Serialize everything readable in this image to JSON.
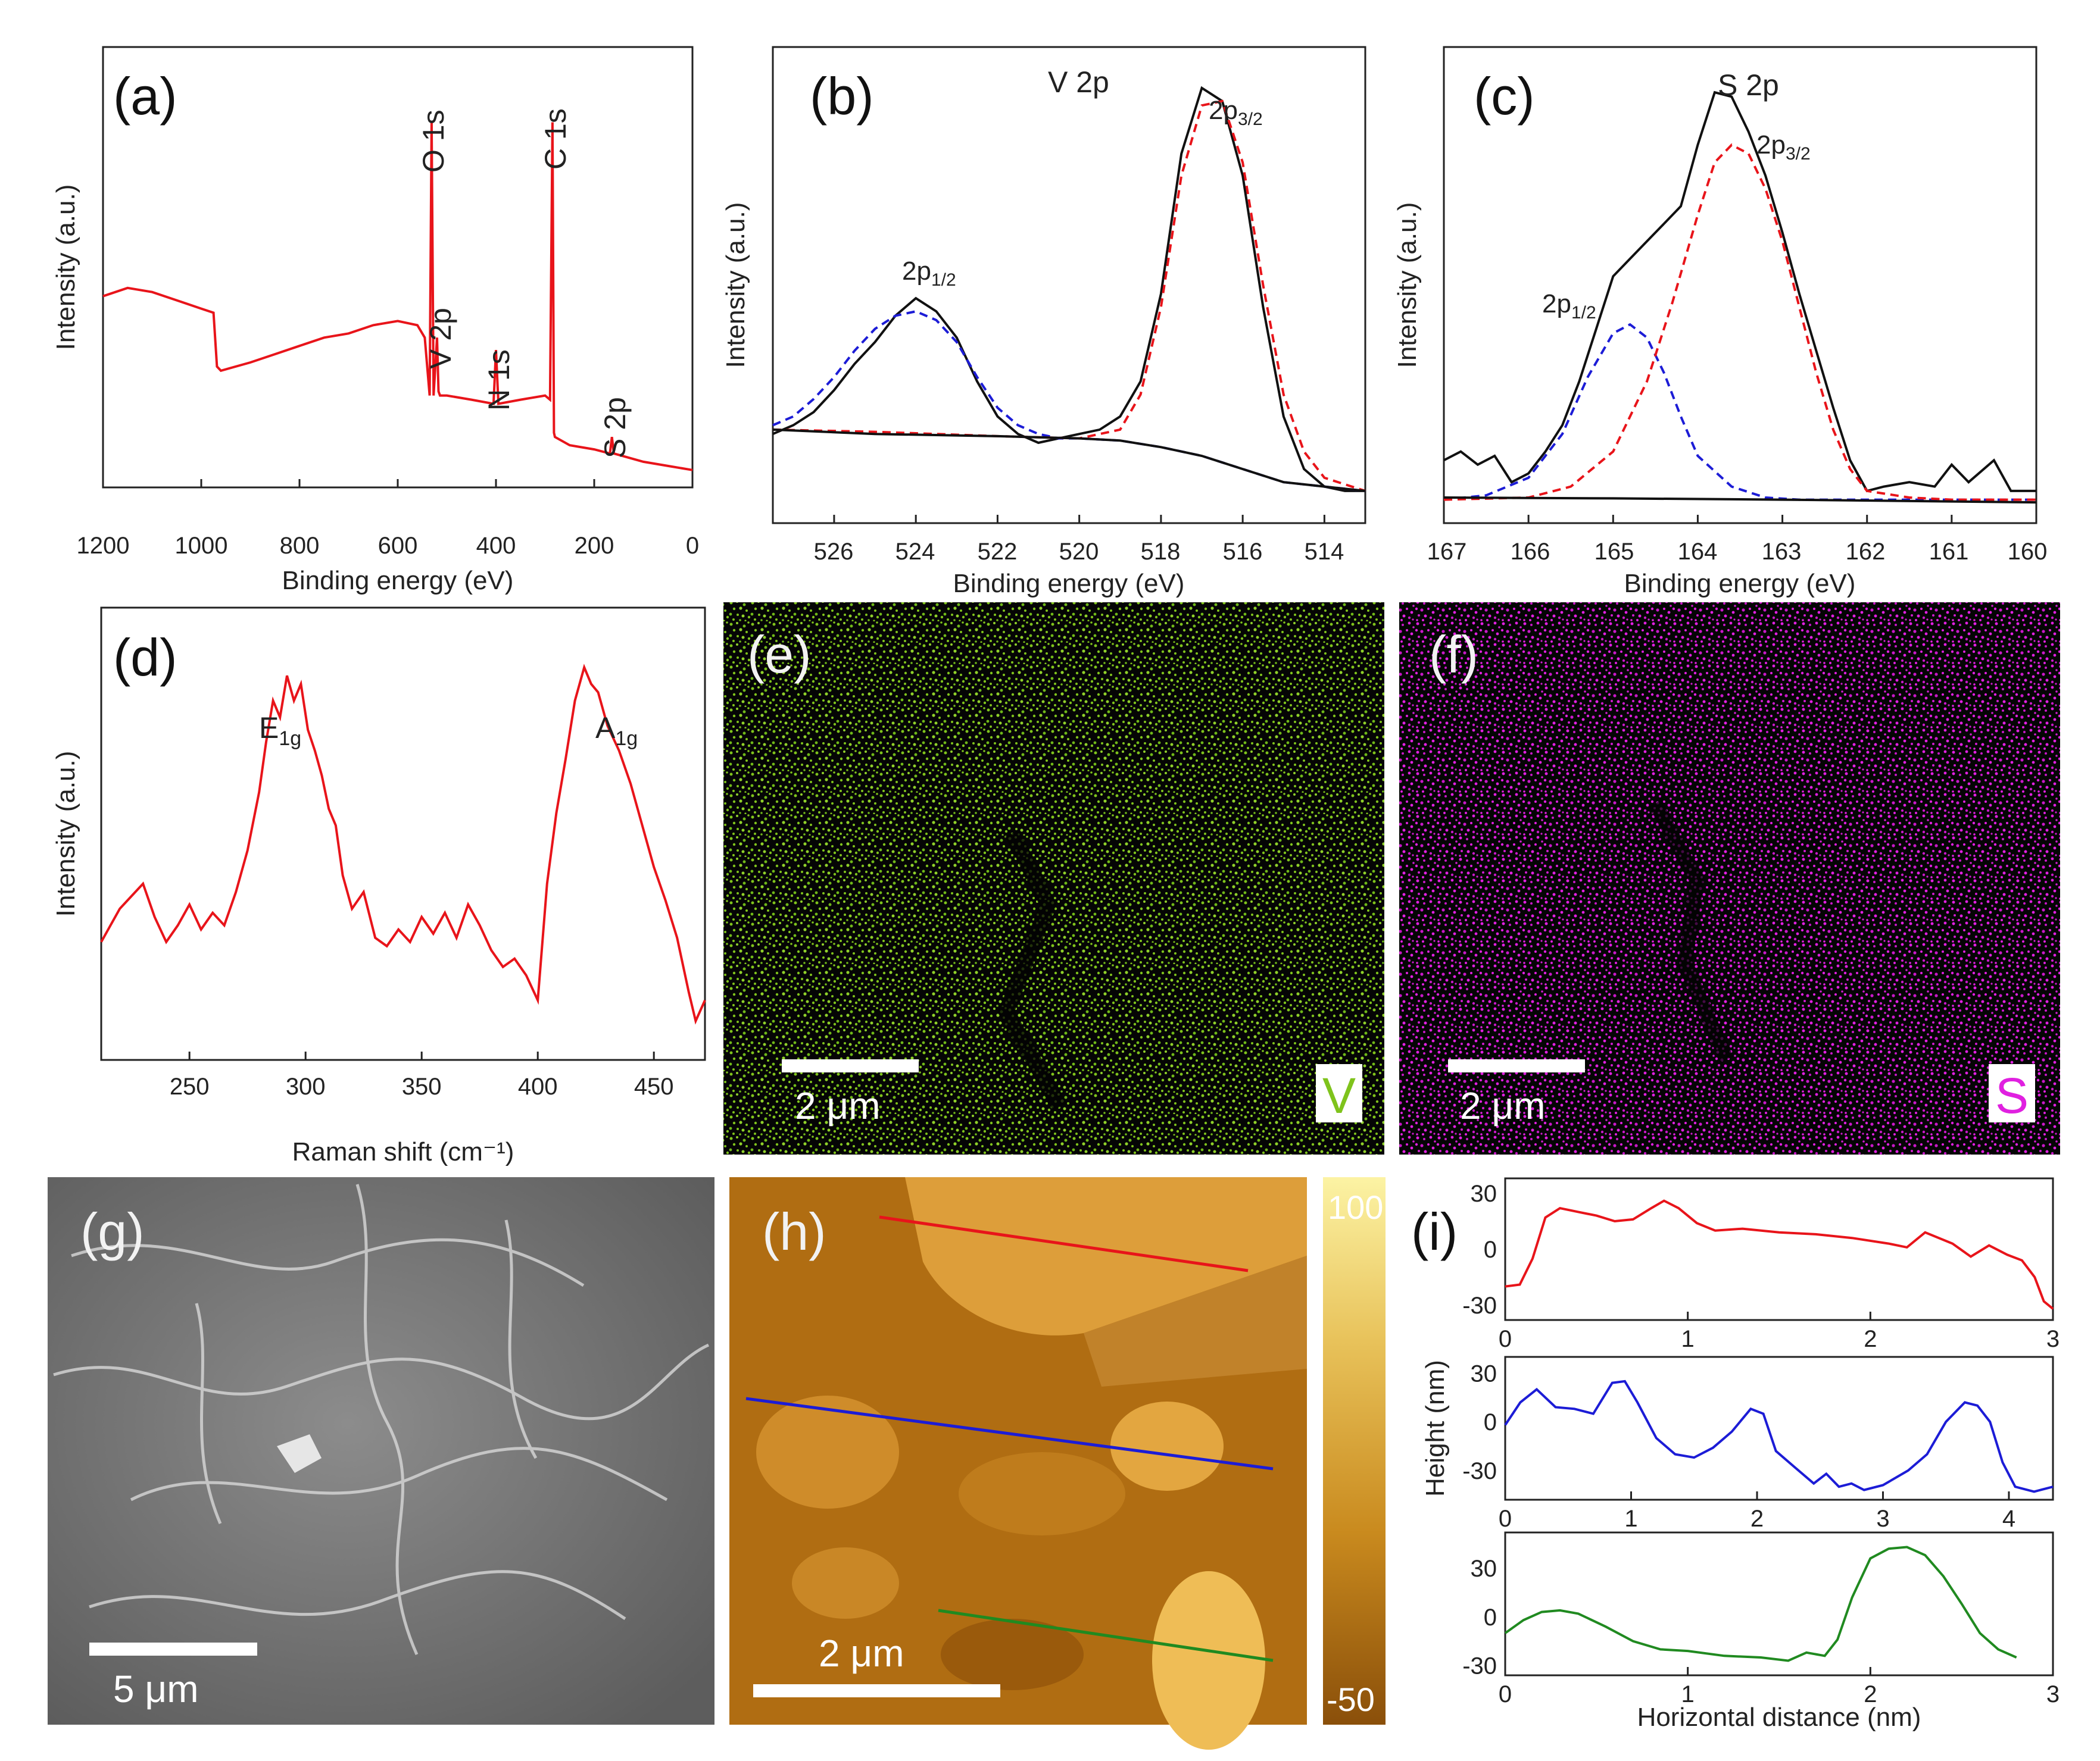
{
  "figure": {
    "panels": {
      "a": "(a)",
      "b": "(b)",
      "c": "(c)",
      "d": "(d)",
      "e": "(e)",
      "f": "(f)",
      "g": "(g)",
      "h": "(h)",
      "i": "(i)"
    },
    "map_e": {
      "element": "V",
      "scale_label": "2 μm",
      "color": "#7fc31c"
    },
    "map_f": {
      "element": "S",
      "scale_label": "2 μm",
      "color": "#e020e0"
    },
    "sem_g": {
      "scale_label": "5 μm"
    },
    "afm_h": {
      "scale_label": "2 μm",
      "colorbar_max": "100",
      "colorbar_min": "-50"
    }
  },
  "chart_data": [
    {
      "id": "a",
      "type": "line",
      "title": "",
      "xlabel": "Binding energy (eV)",
      "ylabel": "Intensity (a.u.)",
      "xlim": [
        1200,
        0
      ],
      "ylim": [
        0,
        100
      ],
      "xticks": [
        "1200",
        "1000",
        "800",
        "600",
        "400",
        "200",
        "0"
      ],
      "annotations": [
        {
          "text": "O 1s",
          "x": 531
        },
        {
          "text": "V 2p",
          "x": 517
        },
        {
          "text": "N 1s",
          "x": 400
        },
        {
          "text": "C 1s",
          "x": 285
        },
        {
          "text": "S 2p",
          "x": 164
        }
      ],
      "series": [
        {
          "name": "survey",
          "color": "#e8141a",
          "x": [
            1200,
            1150,
            1100,
            1050,
            1000,
            975,
            968,
            960,
            900,
            850,
            800,
            750,
            700,
            650,
            600,
            560,
            545,
            535,
            531,
            527,
            520,
            517,
            514,
            500,
            450,
            405,
            400,
            395,
            350,
            300,
            290,
            285,
            282,
            280,
            250,
            200,
            168,
            164,
            160,
            100,
            50,
            0
          ],
          "y": [
            43,
            45,
            44,
            42,
            40,
            39,
            26,
            25,
            27,
            29,
            31,
            33,
            34,
            36,
            37,
            36,
            33,
            19,
            85,
            19,
            33,
            20,
            19,
            19,
            18,
            17,
            30,
            17,
            18,
            19,
            18,
            85,
            10,
            9,
            7,
            6,
            5,
            9,
            5,
            3,
            2,
            1
          ]
        }
      ]
    },
    {
      "id": "b",
      "type": "line",
      "title": "V 2p",
      "xlabel": "Binding energy (eV)",
      "ylabel": "Intensity (a.u.)",
      "xlim": [
        527.5,
        513
      ],
      "ylim": [
        0,
        100
      ],
      "xticks": [
        "526",
        "524",
        "522",
        "520",
        "518",
        "516",
        "514"
      ],
      "annotations": [
        {
          "text": "2p1/2",
          "x": 523.8,
          "color": "#1c1cd6"
        },
        {
          "text": "2p3/2",
          "x": 515.6,
          "color": "#e8141a"
        }
      ],
      "series": [
        {
          "name": "experimental",
          "color": "#111111",
          "x": [
            527.5,
            527,
            526.5,
            526,
            525.5,
            525,
            524.5,
            524,
            523.5,
            523,
            522.5,
            522,
            521.5,
            521,
            520.5,
            520,
            519.5,
            519,
            518.5,
            518,
            517.5,
            517,
            516.5,
            516,
            515.5,
            515,
            514.5,
            514,
            513.5,
            513
          ],
          "y": [
            16,
            18,
            21,
            26,
            32,
            37,
            43,
            47,
            44,
            38,
            28,
            20,
            16,
            14,
            15,
            16,
            17,
            20,
            28,
            48,
            80,
            95,
            92,
            75,
            45,
            20,
            8,
            4,
            3,
            3
          ]
        },
        {
          "name": "2p1/2 fit",
          "color": "#1c1cd6",
          "dashed": true,
          "x": [
            527.5,
            527,
            526.5,
            526,
            525.5,
            525,
            524.5,
            524,
            523.5,
            523,
            522.5,
            522,
            521.5,
            521,
            520.5,
            520,
            519,
            518,
            517,
            516,
            515,
            514,
            513
          ],
          "y": [
            18,
            20,
            24,
            29,
            35,
            40,
            43,
            44,
            42,
            37,
            29,
            22,
            18,
            16,
            15,
            15,
            14.5,
            13,
            11,
            8,
            5,
            4,
            3
          ]
        },
        {
          "name": "2p3/2 fit",
          "color": "#e8141a",
          "dashed": true,
          "x": [
            527.5,
            525,
            522,
            520,
            519,
            518.5,
            518,
            517.5,
            517,
            516.5,
            516,
            515.5,
            515,
            514.5,
            514,
            513
          ],
          "y": [
            17,
            16.5,
            15.5,
            15,
            17,
            25,
            45,
            75,
            91,
            92,
            78,
            50,
            25,
            12,
            6,
            3
          ]
        },
        {
          "name": "background",
          "color": "#111111",
          "x": [
            527.5,
            525,
            522,
            520,
            519,
            518,
            517,
            516,
            515,
            514,
            513
          ],
          "y": [
            17,
            16,
            15.5,
            15,
            14.5,
            13,
            11,
            8,
            5,
            4,
            3
          ]
        }
      ]
    },
    {
      "id": "c",
      "type": "line",
      "title": "S 2p",
      "xlabel": "Binding energy (eV)",
      "ylabel": "Intensity (a.u.)",
      "xlim": [
        167,
        160
      ],
      "ylim": [
        0,
        100
      ],
      "xticks": [
        "167",
        "166",
        "165",
        "164",
        "163",
        "162",
        "161",
        "160"
      ],
      "annotations": [
        {
          "text": "2p1/2",
          "x": 165.3,
          "color": "#1c1cd6"
        },
        {
          "text": "2p3/2",
          "x": 162.9,
          "color": "#e8141a"
        }
      ],
      "series": [
        {
          "name": "experimental",
          "color": "#111111",
          "x": [
            167,
            166.8,
            166.6,
            166.4,
            166.2,
            166.0,
            165.8,
            165.6,
            165.4,
            165.2,
            165.0,
            164.8,
            164.6,
            164.4,
            164.2,
            164.0,
            163.8,
            163.6,
            163.4,
            163.2,
            163.0,
            162.8,
            162.6,
            162.4,
            162.2,
            162.0,
            161.8,
            161.5,
            161.2,
            161.0,
            160.8,
            160.5,
            160.3,
            160.0
          ],
          "y": [
            10,
            12,
            9,
            11,
            5,
            7,
            12,
            18,
            28,
            40,
            52,
            56,
            60,
            64,
            68,
            82,
            94,
            93,
            85,
            75,
            62,
            48,
            35,
            22,
            10,
            3,
            4,
            5,
            4,
            9,
            5,
            10,
            3,
            3
          ]
        },
        {
          "name": "2p1/2 fit",
          "color": "#1c1cd6",
          "dashed": true,
          "x": [
            167,
            166.5,
            166,
            165.6,
            165.3,
            165.0,
            164.8,
            164.6,
            164.4,
            164.2,
            164.0,
            163.6,
            163.2,
            162.8,
            162.4,
            162,
            161,
            160
          ],
          "y": [
            1,
            2,
            6,
            16,
            29,
            39,
            41,
            38,
            30,
            20,
            11,
            4,
            1.5,
            1,
            1,
            1,
            1,
            1
          ]
        },
        {
          "name": "2p3/2 fit",
          "color": "#e8141a",
          "dashed": true,
          "x": [
            167,
            166,
            165.5,
            165.0,
            164.6,
            164.3,
            164.0,
            163.8,
            163.6,
            163.4,
            163.2,
            163.0,
            162.8,
            162.6,
            162.4,
            162.2,
            162.0,
            161.5,
            161,
            160
          ],
          "y": [
            1,
            1.5,
            4,
            12,
            28,
            46,
            66,
            78,
            82,
            80,
            72,
            60,
            45,
            30,
            17,
            8,
            3,
            1.5,
            1,
            1
          ]
        },
        {
          "name": "background",
          "color": "#111111",
          "x": [
            167,
            165,
            163,
            161,
            160
          ],
          "y": [
            1.5,
            1.3,
            1.0,
            0.6,
            0.4
          ]
        }
      ]
    },
    {
      "id": "d",
      "type": "line",
      "title": "",
      "xlabel": "Raman shift (cm⁻¹)",
      "ylabel": "Intensity (a.u.)",
      "xlim": [
        212,
        472
      ],
      "ylim": [
        0,
        100
      ],
      "xticks": [
        "250",
        "300",
        "350",
        "400",
        "450"
      ],
      "xtick_values": [
        250,
        300,
        350,
        400,
        450
      ],
      "annotations": [
        {
          "text": "E1g",
          "x": 290
        },
        {
          "text": "A1g",
          "x": 425
        }
      ],
      "series": [
        {
          "name": "Raman",
          "color": "#e8141a",
          "x": [
            212,
            216,
            220,
            225,
            230,
            235,
            240,
            245,
            250,
            255,
            260,
            265,
            270,
            275,
            280,
            283,
            286,
            289,
            292,
            295,
            298,
            301,
            304,
            307,
            310,
            313,
            316,
            320,
            325,
            330,
            335,
            340,
            345,
            350,
            355,
            360,
            365,
            370,
            375,
            380,
            385,
            390,
            395,
            400,
            404,
            408,
            412,
            416,
            420,
            423,
            426,
            430,
            435,
            440,
            445,
            450,
            455,
            460,
            465,
            468,
            472
          ],
          "y": [
            24,
            28,
            32,
            35,
            38,
            30,
            24,
            28,
            33,
            27,
            31,
            28,
            36,
            46,
            60,
            72,
            82,
            78,
            88,
            82,
            86,
            75,
            70,
            64,
            56,
            52,
            40,
            32,
            36,
            25,
            23,
            27,
            24,
            30,
            26,
            31,
            25,
            33,
            28,
            22,
            18,
            20,
            16,
            10,
            38,
            55,
            68,
            82,
            90,
            86,
            84,
            76,
            70,
            62,
            52,
            42,
            34,
            25,
            12,
            5,
            10
          ]
        }
      ]
    },
    {
      "id": "i1",
      "type": "line",
      "title": "",
      "xlabel": "",
      "ylabel": "",
      "xlim": [
        0,
        3
      ],
      "ylim": [
        -38,
        38
      ],
      "xticks": [
        "0",
        "1",
        "2",
        "3"
      ],
      "xtick_values": [
        0,
        1,
        2,
        3
      ],
      "yticks": [
        "30",
        "0",
        "-30"
      ],
      "ytick_values": [
        30,
        0,
        -30
      ],
      "series": [
        {
          "name": "red profile",
          "color": "#e8141a",
          "x": [
            0,
            0.08,
            0.15,
            0.22,
            0.3,
            0.4,
            0.5,
            0.6,
            0.7,
            0.8,
            0.87,
            0.95,
            1.05,
            1.15,
            1.3,
            1.5,
            1.7,
            1.9,
            2.1,
            2.2,
            2.3,
            2.45,
            2.55,
            2.65,
            2.75,
            2.83,
            2.9,
            2.95,
            3.0
          ],
          "y": [
            -20,
            -19,
            -5,
            17,
            22,
            20,
            18,
            15,
            16,
            22,
            26,
            22,
            14,
            10,
            11,
            9,
            8,
            6,
            3,
            1,
            9,
            3,
            -4,
            2,
            -3,
            -6,
            -15,
            -28,
            -32
          ]
        }
      ]
    },
    {
      "id": "i2",
      "type": "line",
      "title": "",
      "xlabel": "",
      "ylabel": "Height (nm)",
      "xlim": [
        0,
        4.35
      ],
      "ylim": [
        -48,
        40
      ],
      "xticks": [
        "0",
        "1",
        "2",
        "3",
        "4"
      ],
      "xtick_values": [
        0,
        1,
        2,
        3,
        4
      ],
      "yticks": [
        "30",
        "0",
        "-30"
      ],
      "ytick_values": [
        30,
        0,
        -30
      ],
      "series": [
        {
          "name": "blue profile",
          "color": "#1c1cd6",
          "x": [
            0,
            0.12,
            0.25,
            0.4,
            0.55,
            0.7,
            0.85,
            0.95,
            1.05,
            1.2,
            1.35,
            1.5,
            1.65,
            1.8,
            1.95,
            2.05,
            2.15,
            2.3,
            2.45,
            2.55,
            2.65,
            2.75,
            2.85,
            3.0,
            3.2,
            3.35,
            3.5,
            3.65,
            3.75,
            3.85,
            3.95,
            4.05,
            4.2,
            4.35
          ],
          "y": [
            -2,
            12,
            20,
            9,
            8,
            5,
            24,
            25,
            12,
            -10,
            -20,
            -22,
            -16,
            -6,
            8,
            5,
            -18,
            -28,
            -38,
            -32,
            -40,
            -38,
            -42,
            -39,
            -30,
            -20,
            0,
            12,
            10,
            0,
            -25,
            -40,
            -43,
            -40
          ]
        }
      ]
    },
    {
      "id": "i3",
      "type": "line",
      "title": "",
      "xlabel": "Horizontal distance (nm)",
      "ylabel": "",
      "xlim": [
        0,
        3
      ],
      "ylim": [
        -36,
        52
      ],
      "xticks": [
        "0",
        "1",
        "2",
        "3"
      ],
      "xtick_values": [
        0,
        1,
        2,
        3
      ],
      "yticks": [
        "30",
        "0",
        "-30"
      ],
      "ytick_values": [
        30,
        0,
        -30
      ],
      "series": [
        {
          "name": "green profile",
          "color": "#208a20",
          "x": [
            0,
            0.1,
            0.2,
            0.3,
            0.4,
            0.55,
            0.7,
            0.85,
            1.0,
            1.2,
            1.4,
            1.55,
            1.65,
            1.75,
            1.82,
            1.9,
            2.0,
            2.1,
            2.2,
            2.3,
            2.4,
            2.5,
            2.6,
            2.7,
            2.8
          ],
          "y": [
            -10,
            -2,
            3,
            4,
            2,
            -6,
            -15,
            -20,
            -21,
            -24,
            -25,
            -27,
            -22,
            -24,
            -14,
            12,
            36,
            42,
            43,
            38,
            25,
            8,
            -10,
            -20,
            -25
          ]
        }
      ]
    }
  ]
}
